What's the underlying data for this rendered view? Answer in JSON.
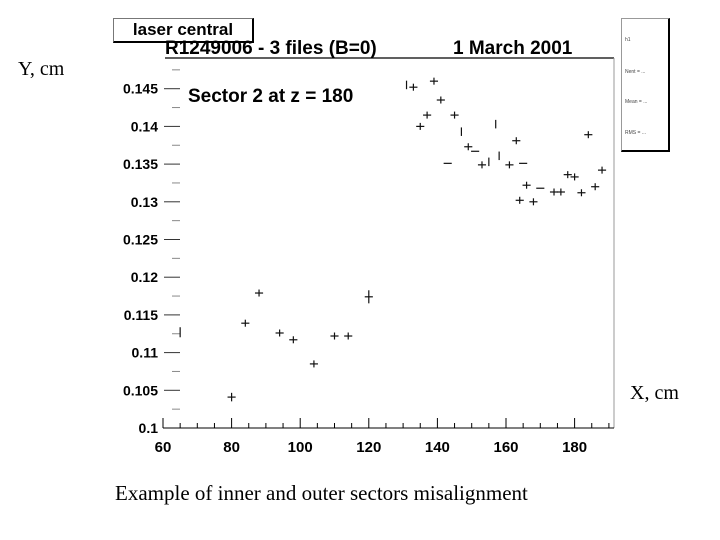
{
  "labels": {
    "y_axis": "Y, cm",
    "x_axis": "X, cm",
    "caption": "Example of inner and outer sectors misalignment"
  },
  "plot": {
    "title_box": "laser central",
    "header_left": "R1249006 - 3 files (B=0)",
    "header_right": "1 March 2001",
    "annotation": "Sector 2 at z = 180",
    "stats_box": {
      "name": "h1",
      "rows": [
        "Nent = ...",
        "Mean = ...",
        "RMS = ..."
      ]
    }
  },
  "chart_data": {
    "type": "scatter",
    "title": "R1249006 - 3 files (B=0)   1 March 2001",
    "subtitle": "Sector 2 at z = 180",
    "legend_box": "laser central",
    "xlabel": "X, cm",
    "ylabel": "Y, cm",
    "xlim": [
      60,
      190
    ],
    "ylim": [
      0.1,
      0.148
    ],
    "x_ticks": [
      60,
      80,
      100,
      120,
      140,
      160,
      180
    ],
    "y_ticks": [
      0.1,
      0.105,
      0.11,
      0.115,
      0.12,
      0.125,
      0.13,
      0.135,
      0.14,
      0.145
    ],
    "y_tick_labels": [
      "0.1",
      "0.105",
      "0.11",
      "0.115",
      "0.12",
      "0.125",
      "0.13",
      "0.135",
      "0.14",
      "0.145"
    ],
    "grid": false,
    "points": [
      {
        "x": 65,
        "y": 0.1127,
        "xerr": 0,
        "yerr": 0.0004
      },
      {
        "x": 80,
        "y": 0.1041,
        "xerr": 0.6,
        "yerr": 0.0003
      },
      {
        "x": 84,
        "y": 0.1139,
        "xerr": 0.6,
        "yerr": 0.0002
      },
      {
        "x": 88,
        "y": 0.1179,
        "xerr": 0.6,
        "yerr": 0.0002
      },
      {
        "x": 94,
        "y": 0.1126,
        "xerr": 0.6,
        "yerr": 0.0002
      },
      {
        "x": 98,
        "y": 0.1117,
        "xerr": 0.6,
        "yerr": 0.0002
      },
      {
        "x": 104,
        "y": 0.1085,
        "xerr": 0.6,
        "yerr": 0.0002
      },
      {
        "x": 110,
        "y": 0.1122,
        "xerr": 0.6,
        "yerr": 0.0002
      },
      {
        "x": 114,
        "y": 0.1122,
        "xerr": 0.6,
        "yerr": 0.0002
      },
      {
        "x": 120,
        "y": 0.1174,
        "xerr": 0.6,
        "yerr": 0.0006
      },
      {
        "x": 131,
        "y": 0.1455,
        "xerr": 0,
        "yerr": 0.0003
      },
      {
        "x": 133,
        "y": 0.1452,
        "xerr": 0.6,
        "yerr": 0.0002
      },
      {
        "x": 135,
        "y": 0.14,
        "xerr": 0.6,
        "yerr": 0.0002
      },
      {
        "x": 137,
        "y": 0.1415,
        "xerr": 0.6,
        "yerr": 0.0002
      },
      {
        "x": 139,
        "y": 0.146,
        "xerr": 0.6,
        "yerr": 0.0002
      },
      {
        "x": 141,
        "y": 0.1435,
        "xerr": 0.6,
        "yerr": 0.0002
      },
      {
        "x": 143,
        "y": 0.1351,
        "xerr": 0.6,
        "yerr": 0
      },
      {
        "x": 145,
        "y": 0.1415,
        "xerr": 0.6,
        "yerr": 0.0002
      },
      {
        "x": 147,
        "y": 0.1393,
        "xerr": 0,
        "yerr": 0.0003
      },
      {
        "x": 149,
        "y": 0.1373,
        "xerr": 0.6,
        "yerr": 0.0002
      },
      {
        "x": 151,
        "y": 0.1367,
        "xerr": 0.6,
        "yerr": 0
      },
      {
        "x": 153,
        "y": 0.1349,
        "xerr": 0.6,
        "yerr": 0.0002
      },
      {
        "x": 155,
        "y": 0.1353,
        "xerr": 0,
        "yerr": 0.0003
      },
      {
        "x": 157,
        "y": 0.1403,
        "xerr": 0,
        "yerr": 0.0003
      },
      {
        "x": 158,
        "y": 0.1361,
        "xerr": 0,
        "yerr": 0.0003
      },
      {
        "x": 161,
        "y": 0.1349,
        "xerr": 0.6,
        "yerr": 0.0002
      },
      {
        "x": 163,
        "y": 0.1381,
        "xerr": 0.6,
        "yerr": 0.0002
      },
      {
        "x": 164,
        "y": 0.1302,
        "xerr": 0.6,
        "yerr": 0.0002
      },
      {
        "x": 165,
        "y": 0.1351,
        "xerr": 0.6,
        "yerr": 0
      },
      {
        "x": 166,
        "y": 0.1322,
        "xerr": 0.6,
        "yerr": 0.0002
      },
      {
        "x": 168,
        "y": 0.13,
        "xerr": 0.6,
        "yerr": 0.0002
      },
      {
        "x": 170,
        "y": 0.1318,
        "xerr": 0.6,
        "yerr": 0
      },
      {
        "x": 174,
        "y": 0.1313,
        "xerr": 0.6,
        "yerr": 0.0002
      },
      {
        "x": 176,
        "y": 0.1313,
        "xerr": 0.6,
        "yerr": 0.0002
      },
      {
        "x": 178,
        "y": 0.1336,
        "xerr": 0.6,
        "yerr": 0.0002
      },
      {
        "x": 180,
        "y": 0.1333,
        "xerr": 0.6,
        "yerr": 0.0002
      },
      {
        "x": 182,
        "y": 0.1312,
        "xerr": 0.6,
        "yerr": 0.0002
      },
      {
        "x": 184,
        "y": 0.1389,
        "xerr": 0.6,
        "yerr": 0.0002
      },
      {
        "x": 186,
        "y": 0.132,
        "xerr": 0.6,
        "yerr": 0.0002
      },
      {
        "x": 188,
        "y": 0.1342,
        "xerr": 0.6,
        "yerr": 0.0002
      }
    ]
  }
}
